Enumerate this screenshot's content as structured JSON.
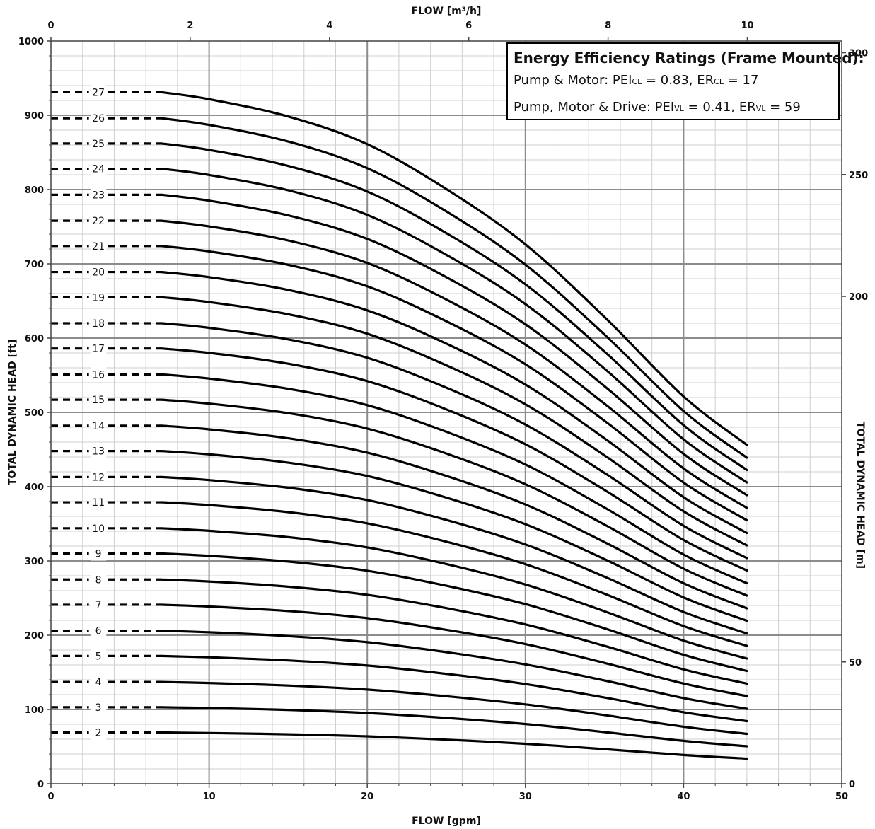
{
  "chart_data": {
    "type": "line",
    "x_axis_bottom": {
      "label": "FLOW [gpm]",
      "min": 0,
      "max": 50,
      "ticks": [
        0,
        10,
        20,
        30,
        40,
        50
      ]
    },
    "x_axis_top": {
      "label": "FLOW [m³/h]",
      "min": 0,
      "max": 11.356,
      "ticks": [
        0,
        2,
        4,
        6,
        8,
        10
      ]
    },
    "y_axis_left": {
      "label": "TOTAL DYNAMIC HEAD [ft]",
      "min": 0,
      "max": 1000,
      "ticks": [
        0,
        100,
        200,
        300,
        400,
        500,
        600,
        700,
        800,
        900,
        1000
      ]
    },
    "y_axis_right": {
      "label": "TOTAL DYNAMIC HEAD [m]",
      "min": 0,
      "max": 304.8,
      "ticks": [
        0,
        50,
        200,
        250,
        300
      ]
    },
    "grid": true,
    "curve_shape": {
      "x": [
        7,
        10,
        15,
        20,
        25,
        30,
        35,
        40,
        44
      ],
      "head_ratio": [
        1.0,
        0.99,
        0.965,
        0.925,
        0.86,
        0.78,
        0.675,
        0.56,
        0.49
      ]
    },
    "dashed_segment_x": [
      0,
      7
    ],
    "series": [
      {
        "name": "2",
        "shutoff_head_ft": 69
      },
      {
        "name": "3",
        "shutoff_head_ft": 103
      },
      {
        "name": "4",
        "shutoff_head_ft": 137
      },
      {
        "name": "5",
        "shutoff_head_ft": 172
      },
      {
        "name": "6",
        "shutoff_head_ft": 206
      },
      {
        "name": "7",
        "shutoff_head_ft": 241
      },
      {
        "name": "8",
        "shutoff_head_ft": 275
      },
      {
        "name": "9",
        "shutoff_head_ft": 310
      },
      {
        "name": "10",
        "shutoff_head_ft": 344
      },
      {
        "name": "11",
        "shutoff_head_ft": 379
      },
      {
        "name": "12",
        "shutoff_head_ft": 413
      },
      {
        "name": "13",
        "shutoff_head_ft": 448
      },
      {
        "name": "14",
        "shutoff_head_ft": 482
      },
      {
        "name": "15",
        "shutoff_head_ft": 517
      },
      {
        "name": "16",
        "shutoff_head_ft": 551
      },
      {
        "name": "17",
        "shutoff_head_ft": 586
      },
      {
        "name": "18",
        "shutoff_head_ft": 620
      },
      {
        "name": "19",
        "shutoff_head_ft": 655
      },
      {
        "name": "20",
        "shutoff_head_ft": 689
      },
      {
        "name": "21",
        "shutoff_head_ft": 724
      },
      {
        "name": "22",
        "shutoff_head_ft": 758
      },
      {
        "name": "23",
        "shutoff_head_ft": 793
      },
      {
        "name": "24",
        "shutoff_head_ft": 828
      },
      {
        "name": "25",
        "shutoff_head_ft": 862
      },
      {
        "name": "26",
        "shutoff_head_ft": 896
      },
      {
        "name": "27",
        "shutoff_head_ft": 931
      }
    ],
    "legend_box": {
      "title": "Energy Efficiency Ratings (Frame Mounted):",
      "line1_prefix": "Pump & Motor: PEI",
      "line1_sub1": "CL",
      "line1_mid": " = 0.83, ER",
      "line1_sub2": "CL",
      "line1_suffix": " = 17",
      "line2_prefix": "Pump, Motor & Drive: PEI",
      "line2_sub1": "VL",
      "line2_mid": " = 0.41, ER",
      "line2_sub2": "VL",
      "line2_suffix": " = 59"
    }
  }
}
